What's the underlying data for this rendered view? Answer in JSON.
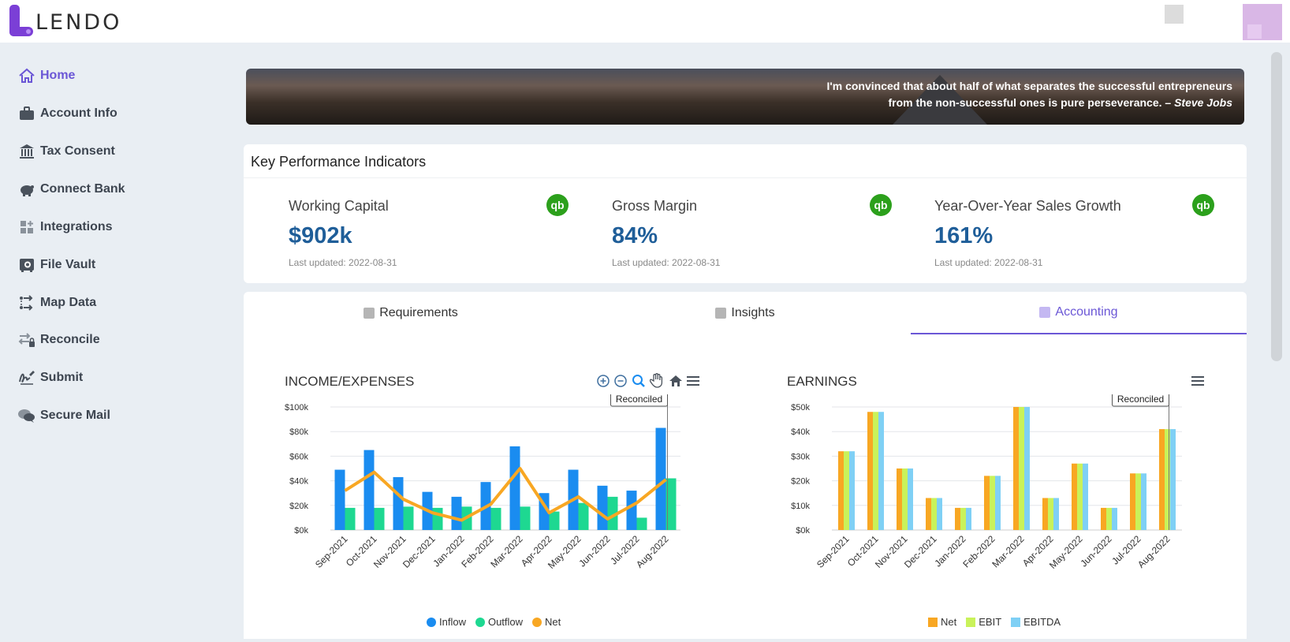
{
  "header": {
    "logo_text": "LENDO"
  },
  "sidebar": {
    "items": [
      {
        "label": "Home",
        "icon": "home-icon",
        "active": true
      },
      {
        "label": "Account Info",
        "icon": "briefcase-icon"
      },
      {
        "label": "Tax Consent",
        "icon": "bank-icon"
      },
      {
        "label": "Connect Bank",
        "icon": "piggy-bank-icon"
      },
      {
        "label": "Integrations",
        "icon": "integrations-icon"
      },
      {
        "label": "File Vault",
        "icon": "vault-icon"
      },
      {
        "label": "Map Data",
        "icon": "map-data-icon"
      },
      {
        "label": "Reconcile",
        "icon": "reconcile-icon"
      },
      {
        "label": "Submit",
        "icon": "signature-icon"
      },
      {
        "label": "Secure Mail",
        "icon": "chat-icon"
      }
    ]
  },
  "banner": {
    "quote_line1": "I'm convinced that about half of what separates the successful entrepreneurs",
    "quote_line2": "from the non-successful ones is pure perseverance. –",
    "author": "Steve Jobs"
  },
  "kpi": {
    "title": "Key Performance Indicators",
    "items": [
      {
        "name": "Working Capital",
        "value": "$902k",
        "updated": "Last updated: 2022-08-31",
        "badge": "qb"
      },
      {
        "name": "Gross Margin",
        "value": "84%",
        "updated": "Last updated: 2022-08-31",
        "badge": "qb"
      },
      {
        "name": "Year-Over-Year Sales Growth",
        "value": "161%",
        "updated": "Last updated: 2022-08-31",
        "badge": "qb"
      }
    ]
  },
  "tabs": [
    {
      "label": "Requirements"
    },
    {
      "label": "Insights"
    },
    {
      "label": "Accounting",
      "active": true
    }
  ],
  "colors": {
    "accent": "#6b57d6",
    "inflow": "#1a8cf0",
    "outflow": "#1ed891",
    "net_line": "#f8a723",
    "net_bar": "#f8a723",
    "ebit": "#c9f25a",
    "ebitda": "#7fd0f5"
  },
  "chart_data": [
    {
      "type": "bar",
      "title": "INCOME/EXPENSES",
      "categories": [
        "Sep-2021",
        "Oct-2021",
        "Nov-2021",
        "Dec-2021",
        "Jan-2022",
        "Feb-2022",
        "Mar-2022",
        "Apr-2022",
        "May-2022",
        "Jun-2022",
        "Jul-2022",
        "Aug-2022"
      ],
      "series": [
        {
          "name": "Inflow",
          "kind": "bar",
          "values": [
            49,
            65,
            43,
            31,
            27,
            39,
            68,
            30,
            49,
            36,
            32,
            83
          ]
        },
        {
          "name": "Outflow",
          "kind": "bar",
          "values": [
            18,
            18,
            19,
            18,
            19,
            18,
            19,
            15,
            22,
            27,
            10,
            42
          ]
        },
        {
          "name": "Net",
          "kind": "line",
          "values": [
            32,
            47,
            25,
            14,
            8,
            21,
            50,
            14,
            27,
            9,
            22,
            41
          ]
        }
      ],
      "ytick_labels": [
        "$0k",
        "$20k",
        "$40k",
        "$60k",
        "$80k",
        "$100k"
      ],
      "ylim": [
        0,
        100
      ],
      "annotation": "Reconciled",
      "legend": "bottom"
    },
    {
      "type": "bar",
      "title": "EARNINGS",
      "categories": [
        "Sep-2021",
        "Oct-2021",
        "Nov-2021",
        "Dec-2021",
        "Jan-2022",
        "Feb-2022",
        "Mar-2022",
        "Apr-2022",
        "May-2022",
        "Jun-2022",
        "Jul-2022",
        "Aug-2022"
      ],
      "series": [
        {
          "name": "Net",
          "values": [
            32,
            48,
            25,
            13,
            9,
            22,
            50,
            13,
            27,
            9,
            23,
            41
          ]
        },
        {
          "name": "EBIT",
          "values": [
            32,
            48,
            25,
            13,
            9,
            22,
            50,
            13,
            27,
            9,
            23,
            41
          ]
        },
        {
          "name": "EBITDA",
          "values": [
            32,
            48,
            25,
            13,
            9,
            22,
            50,
            13,
            27,
            9,
            23,
            41
          ]
        }
      ],
      "ytick_labels": [
        "$0k",
        "$10k",
        "$20k",
        "$30k",
        "$40k",
        "$50k"
      ],
      "ylim": [
        0,
        50
      ],
      "annotation": "Reconciled",
      "legend": "bottom"
    }
  ]
}
